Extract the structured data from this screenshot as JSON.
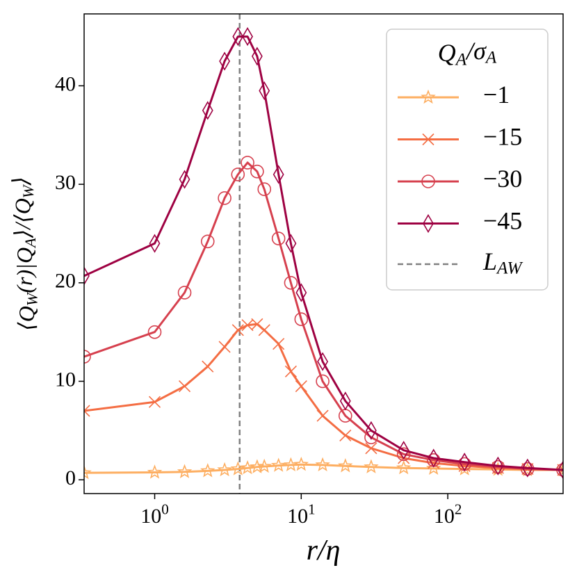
{
  "chart_data": {
    "type": "line",
    "xlabel": "r/η",
    "ylabel": "⟨Q_W(r)|Q_A⟩/⟨Q_W⟩",
    "xscale": "log",
    "xlim": [
      0.33,
      612
    ],
    "ylim": [
      -1.4,
      47.3
    ],
    "xticks": [
      {
        "value": 1,
        "label": "10^0"
      },
      {
        "value": 10,
        "label": "10^1"
      },
      {
        "value": 100,
        "label": "10^2"
      }
    ],
    "yticks": [
      0,
      10,
      20,
      30,
      40
    ],
    "x": [
      0.33,
      1,
      1.6,
      2.3,
      3,
      3.7,
      4.3,
      5,
      5.6,
      7,
      8.5,
      10,
      14,
      20,
      30,
      50,
      80,
      130,
      220,
      350,
      612
    ],
    "legend_title": "Q_A/σ_A",
    "legend": "upper right",
    "series": [
      {
        "name": "−1",
        "color": "#fdae61",
        "marker": "star",
        "values": [
          0.7,
          0.75,
          0.8,
          0.9,
          1.0,
          1.1,
          1.2,
          1.3,
          1.35,
          1.45,
          1.5,
          1.55,
          1.5,
          1.4,
          1.3,
          1.2,
          1.15,
          1.1,
          1.05,
          1.0,
          1.0
        ]
      },
      {
        "name": "−15",
        "color": "#f46d43",
        "marker": "x",
        "values": [
          7,
          7.9,
          9.5,
          11.5,
          13.5,
          15.2,
          15.7,
          15.8,
          15.2,
          13.8,
          11,
          9.5,
          6.5,
          4.5,
          3.2,
          2.2,
          1.7,
          1.4,
          1.2,
          1.1,
          1.0
        ]
      },
      {
        "name": "−30",
        "color": "#d6404e",
        "marker": "circle",
        "values": [
          12.5,
          15,
          19,
          24.2,
          28.6,
          31,
          32.2,
          31.3,
          29.5,
          24.5,
          20,
          16.3,
          10,
          6.5,
          4.3,
          2.6,
          2.0,
          1.6,
          1.3,
          1.1,
          1.0
        ]
      },
      {
        "name": "−45",
        "color": "#9e0142",
        "marker": "diamond",
        "values": [
          20.7,
          24,
          30.5,
          37.5,
          42.5,
          45,
          45,
          43,
          39.5,
          31,
          24,
          19,
          12,
          8,
          5,
          3,
          2.2,
          1.8,
          1.4,
          1.2,
          1.0
        ]
      }
    ],
    "vline": {
      "x": 3.8,
      "label": "L_AW",
      "color": "#808080"
    }
  }
}
